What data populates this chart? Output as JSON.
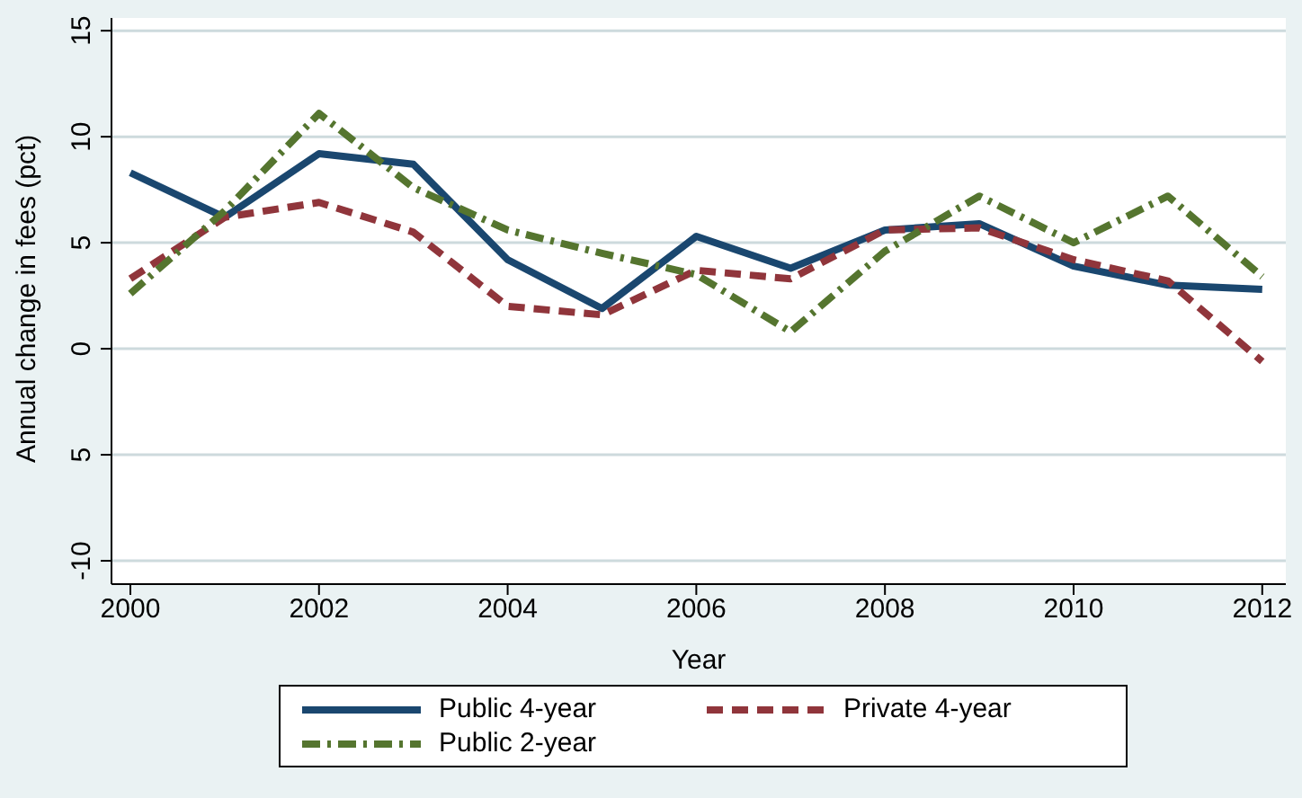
{
  "chart_data": {
    "type": "line",
    "xlabel": "Year",
    "ylabel": "Annual change in fees (pct)",
    "x": [
      2000,
      2001,
      2002,
      2003,
      2004,
      2005,
      2006,
      2007,
      2008,
      2009,
      2010,
      2011,
      2012
    ],
    "series": [
      {
        "name": "Public 4-year",
        "color": "#1a476f",
        "line_style": "solid",
        "values": [
          8.3,
          6.2,
          9.2,
          8.7,
          4.2,
          1.9,
          5.3,
          3.8,
          5.6,
          5.9,
          3.9,
          3.0,
          2.8
        ]
      },
      {
        "name": "Private 4-year",
        "color": "#90353b",
        "line_style": "dashed",
        "values": [
          3.3,
          6.2,
          6.9,
          5.5,
          2.0,
          1.6,
          3.7,
          3.3,
          5.6,
          5.7,
          4.2,
          3.2,
          -0.6
        ]
      },
      {
        "name": "Public 2-year",
        "color": "#55752f",
        "line_style": "dashdot",
        "values": [
          2.6,
          6.5,
          11.1,
          7.6,
          5.6,
          4.5,
          3.5,
          0.8,
          4.6,
          7.2,
          5.0,
          7.2,
          3.4
        ]
      }
    ],
    "xlim": [
      1999.8,
      2012.25
    ],
    "xticks": [
      2000,
      2002,
      2004,
      2006,
      2008,
      2010,
      2012
    ],
    "ylim": [
      -11.1,
      15.6
    ],
    "yticks": [
      15,
      10,
      5,
      0,
      {
        "value": -5,
        "label": "5"
      },
      -10
    ],
    "grid": "y",
    "legend": "bottom",
    "marker": "none"
  }
}
